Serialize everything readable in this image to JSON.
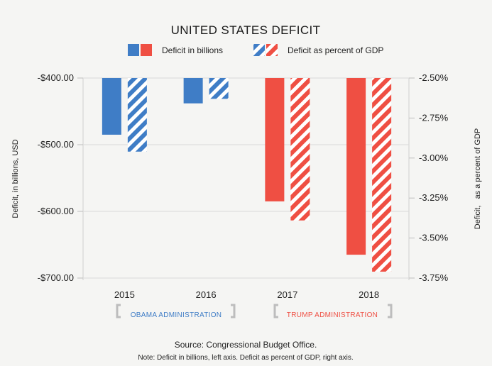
{
  "chart_data": {
    "type": "bar",
    "title": "UNITED STATES DEFICIT",
    "categories": [
      "2015",
      "2016",
      "2017",
      "2018"
    ],
    "series": [
      {
        "name": "Deficit in billions",
        "axis": "left",
        "values": [
          -485,
          -438,
          -585,
          -665
        ],
        "colors": [
          "#3f7dc6",
          "#3f7dc6",
          "#ef4f43",
          "#ef4f43"
        ],
        "pattern": "solid"
      },
      {
        "name": "Deficit as percent of GDP",
        "axis": "right",
        "values": [
          -2.96,
          -2.63,
          -3.39,
          -3.71
        ],
        "colors": [
          "#3f7dc6",
          "#3f7dc6",
          "#ef4f43",
          "#ef4f43"
        ],
        "pattern": "striped"
      }
    ],
    "y_left": {
      "label": "Deficit, in billions, USD",
      "ticks": [
        "-$400.00",
        "-$500.00",
        "-$600.00",
        "-$700.00"
      ],
      "range": [
        -400,
        -700
      ]
    },
    "y_right": {
      "label": "Deficit,   as a percent of GDP",
      "ticks": [
        "-2.50%",
        "-2.75%",
        "-3.00%",
        "-3.25%",
        "-3.50%",
        "-3.75%"
      ],
      "range": [
        -2.5,
        -3.75
      ]
    },
    "groups": [
      {
        "label": "OBAMA ADMINISTRATION",
        "color": "#3f7dc6",
        "categories": [
          "2015",
          "2016"
        ]
      },
      {
        "label": "TRUMP ADMINISTRATION",
        "color": "#ef4f43",
        "categories": [
          "2017",
          "2018"
        ]
      }
    ],
    "legend": {
      "position": "top-center",
      "swatch_colors": [
        "#3f7dc6",
        "#ef4f43"
      ]
    },
    "grid": true,
    "source": "Source: Congressional Budget Office.",
    "note": "Note: Deficit in billions, left axis. Deficit as percent of GDP, right axis."
  }
}
